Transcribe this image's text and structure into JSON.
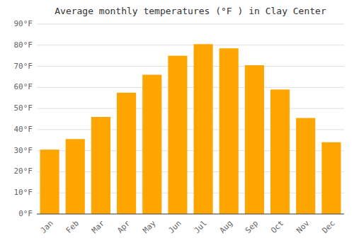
{
  "chart_data": {
    "type": "bar",
    "title": "Average monthly temperatures (°F ) in Clay Center",
    "categories": [
      "Jan",
      "Feb",
      "Mar",
      "Apr",
      "May",
      "Jun",
      "Jul",
      "Aug",
      "Sep",
      "Oct",
      "Nov",
      "Dec"
    ],
    "values": [
      30.5,
      35.5,
      46.0,
      57.5,
      66.0,
      75.0,
      80.5,
      78.5,
      70.5,
      59.0,
      45.5,
      34.0
    ],
    "color": "#FFA500",
    "ylim": [
      0,
      90
    ],
    "yticks": [
      {
        "value": 0,
        "label": "0°F"
      },
      {
        "value": 10,
        "label": "10°F"
      },
      {
        "value": 20,
        "label": "20°F"
      },
      {
        "value": 30,
        "label": "30°F"
      },
      {
        "value": 40,
        "label": "40°F"
      },
      {
        "value": 50,
        "label": "50°F"
      },
      {
        "value": 60,
        "label": "60°F"
      },
      {
        "value": 70,
        "label": "70°F"
      },
      {
        "value": 80,
        "label": "80°F"
      },
      {
        "value": 90,
        "label": "90°F"
      }
    ],
    "grid": true
  }
}
